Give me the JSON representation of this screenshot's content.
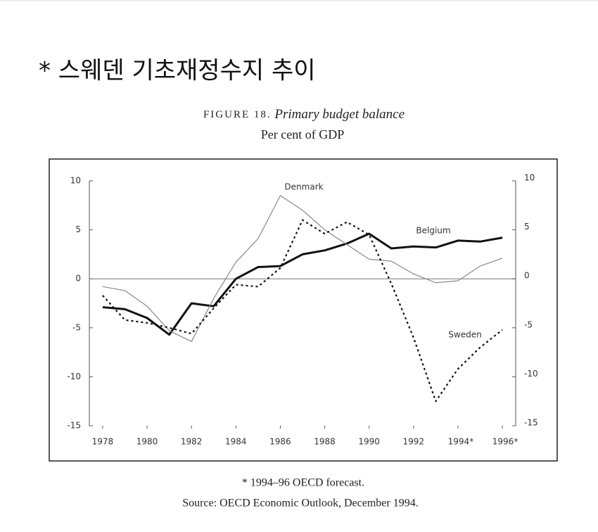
{
  "heading": "* 스웨덴 기초재정수지 추이",
  "chart_data": {
    "type": "line",
    "figure_label": "FIGURE 18.",
    "title": "Primary budget balance",
    "subtitle": "Per cent of GDP",
    "x": [
      1978,
      1979,
      1980,
      1981,
      1982,
      1983,
      1984,
      1985,
      1986,
      1987,
      1988,
      1989,
      1990,
      1991,
      1992,
      1993,
      1994,
      1995,
      1996
    ],
    "xlim": [
      1977.4,
      1996.6
    ],
    "xticks": [
      1978,
      1980,
      1982,
      1984,
      1986,
      1988,
      1990,
      1992,
      {
        "value": 1994,
        "label": "1994*"
      },
      {
        "value": 1996,
        "label": "1996*"
      }
    ],
    "ylim": [
      -15,
      10
    ],
    "yticks": [
      10,
      5,
      0,
      -5,
      -10,
      -15
    ],
    "y2lim": [
      -15,
      10
    ],
    "y2ticks": [
      10,
      5,
      0,
      -5,
      -10,
      -15
    ],
    "series": [
      {
        "name": "Belgium",
        "color": "#111111",
        "style": "thick",
        "values": [
          -2.9,
          -3.1,
          -4.0,
          -5.7,
          -2.5,
          -2.8,
          0,
          1.2,
          1.3,
          2.5,
          2.9,
          3.6,
          4.6,
          3.1,
          3.3,
          3.2,
          3.9,
          3.8,
          4.2
        ]
      },
      {
        "name": "Denmark",
        "color": "#888888",
        "style": "thin",
        "values": [
          -0.8,
          -1.2,
          -2.8,
          -5.3,
          -6.4,
          -2.0,
          1.7,
          4.1,
          8.5,
          7.0,
          5.0,
          3.5,
          2.0,
          1.8,
          0.5,
          -0.4,
          -0.2,
          1.3,
          2.1
        ]
      },
      {
        "name": "Sweden",
        "color": "#111111",
        "style": "dotted",
        "values": [
          -1.7,
          -4.2,
          -4.5,
          -5.0,
          -5.6,
          -3.0,
          -0.6,
          -0.8,
          1.1,
          6.0,
          4.6,
          5.8,
          4.5,
          -0.5,
          -6.0,
          -12.5,
          -9.2,
          -7.0,
          -5.2
        ]
      }
    ],
    "footnote": "* 1994–96 OECD forecast.",
    "source": "Source: OECD Economic Outlook, December 1994."
  }
}
